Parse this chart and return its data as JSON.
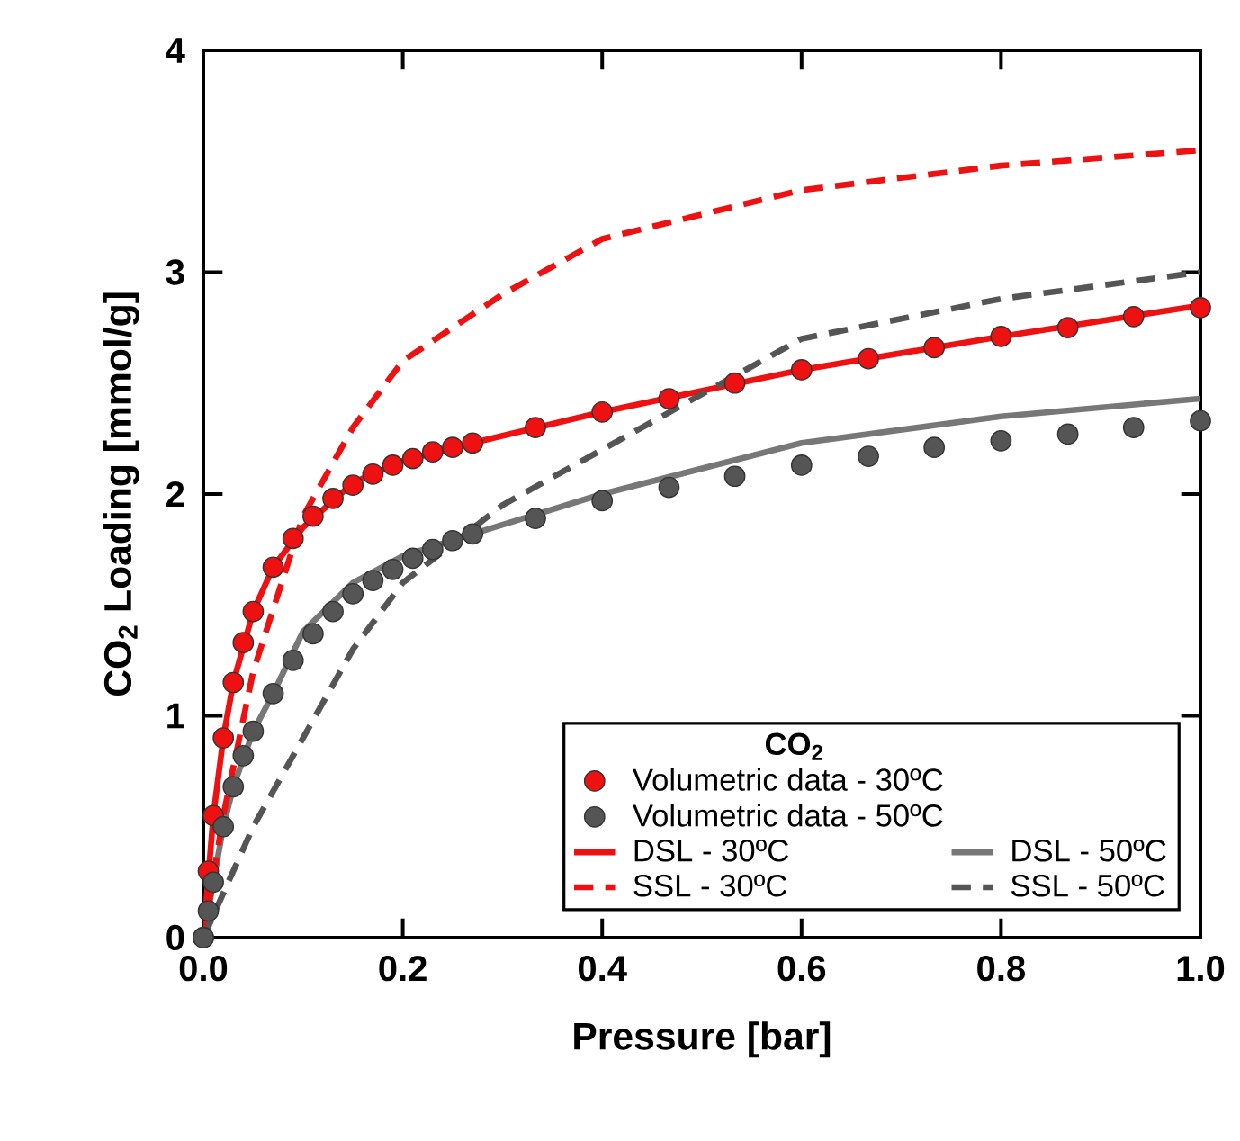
{
  "chart_data": {
    "type": "scatter",
    "xlabel": "Pressure [bar]",
    "ylabel": "CO$_{2}$ Loading [mmol/g]",
    "legend_title": "CO$_{2}$",
    "xlim": [
      0,
      1
    ],
    "ylim": [
      0,
      4
    ],
    "xticks": [
      {
        "value": 0,
        "label": "0.0"
      },
      {
        "value": 0.2,
        "label": "0.2"
      },
      {
        "value": 0.4,
        "label": "0.4"
      },
      {
        "value": 0.6,
        "label": "0.6"
      },
      {
        "value": 0.8,
        "label": "0.8"
      },
      {
        "value": 1,
        "label": "1.0"
      }
    ],
    "yticks": [
      0,
      1,
      2,
      3,
      4
    ],
    "legend": "bottom right",
    "grid": false,
    "series": [
      {
        "name": "Volumetric data - 30ºC",
        "marker": "circle",
        "color": "#ee1111",
        "x": [
          0,
          0.005,
          0.01,
          0.02,
          0.03,
          0.04,
          0.05,
          0.07,
          0.09,
          0.11,
          0.13,
          0.15,
          0.17,
          0.19,
          0.21,
          0.23,
          0.25,
          0.27,
          0.333,
          0.4,
          0.467,
          0.533,
          0.6,
          0.667,
          0.733,
          0.8,
          0.867,
          0.933,
          1.0
        ],
        "values": [
          0,
          0.3,
          0.55,
          0.9,
          1.15,
          1.33,
          1.47,
          1.67,
          1.8,
          1.9,
          1.98,
          2.04,
          2.09,
          2.13,
          2.16,
          2.19,
          2.21,
          2.23,
          2.3,
          2.37,
          2.43,
          2.5,
          2.56,
          2.61,
          2.66,
          2.71,
          2.75,
          2.8,
          2.84
        ]
      },
      {
        "name": "Volumetric data - 50ºC",
        "marker": "circle",
        "color": "#555555",
        "x": [
          0,
          0.005,
          0.01,
          0.02,
          0.03,
          0.04,
          0.05,
          0.07,
          0.09,
          0.11,
          0.13,
          0.15,
          0.17,
          0.19,
          0.21,
          0.23,
          0.25,
          0.27,
          0.333,
          0.4,
          0.467,
          0.533,
          0.6,
          0.667,
          0.733,
          0.8,
          0.867,
          0.933,
          1.0
        ],
        "values": [
          0,
          0.12,
          0.25,
          0.5,
          0.68,
          0.82,
          0.93,
          1.1,
          1.25,
          1.37,
          1.47,
          1.55,
          1.61,
          1.66,
          1.71,
          1.75,
          1.79,
          1.82,
          1.89,
          1.97,
          2.03,
          2.08,
          2.13,
          2.17,
          2.21,
          2.24,
          2.27,
          2.3,
          2.33
        ]
      },
      {
        "name": "DSL - 30ºC",
        "type": "line",
        "marker": "none",
        "line_style": "solid",
        "color": "#ee1111",
        "x": [
          0,
          0.01,
          0.02,
          0.03,
          0.05,
          0.07,
          0.1,
          0.15,
          0.2,
          0.27,
          0.4,
          0.6,
          0.8,
          1.0
        ],
        "values": [
          0,
          0.55,
          0.9,
          1.15,
          1.47,
          1.67,
          1.85,
          2.05,
          2.15,
          2.23,
          2.37,
          2.56,
          2.71,
          2.85
        ]
      },
      {
        "name": "DSL - 50ºC",
        "type": "line",
        "marker": "none",
        "line_style": "solid",
        "color": "#777777",
        "x": [
          0,
          0.01,
          0.02,
          0.03,
          0.05,
          0.07,
          0.1,
          0.15,
          0.2,
          0.27,
          0.4,
          0.6,
          0.8,
          1.0
        ],
        "values": [
          0,
          0.25,
          0.5,
          0.68,
          0.93,
          1.1,
          1.38,
          1.6,
          1.72,
          1.82,
          2.0,
          2.23,
          2.35,
          2.43
        ]
      },
      {
        "name": "SSL - 30ºC",
        "type": "line",
        "marker": "none",
        "line_style": "dashed",
        "color": "#ee1111",
        "x": [
          0,
          0.02,
          0.05,
          0.1,
          0.15,
          0.2,
          0.3,
          0.4,
          0.6,
          0.8,
          1.0
        ],
        "values": [
          0,
          0.55,
          1.2,
          1.9,
          2.3,
          2.6,
          2.9,
          3.15,
          3.37,
          3.48,
          3.55
        ]
      },
      {
        "name": "SSL - 50ºC",
        "type": "line",
        "marker": "none",
        "line_style": "dashed",
        "color": "#555555",
        "x": [
          0,
          0.02,
          0.05,
          0.1,
          0.15,
          0.2,
          0.3,
          0.4,
          0.6,
          0.8,
          1.0
        ],
        "values": [
          0,
          0.2,
          0.5,
          0.9,
          1.3,
          1.6,
          1.95,
          2.2,
          2.7,
          2.88,
          3.0
        ]
      }
    ]
  }
}
